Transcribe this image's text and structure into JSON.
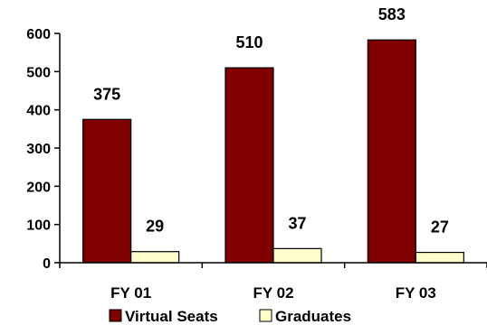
{
  "chart_data": {
    "type": "bar",
    "categories": [
      "FY 01",
      "FY 02",
      "FY 03"
    ],
    "series": [
      {
        "name": "Virtual Seats",
        "values": [
          375,
          510,
          583
        ],
        "color": "#800000"
      },
      {
        "name": "Graduates",
        "values": [
          29,
          37,
          27
        ],
        "color": "#FFFFCC"
      }
    ],
    "yticks": [
      0,
      100,
      200,
      300,
      400,
      500,
      600
    ],
    "ylim": [
      0,
      600
    ],
    "grid": false,
    "legend": "bottom"
  }
}
